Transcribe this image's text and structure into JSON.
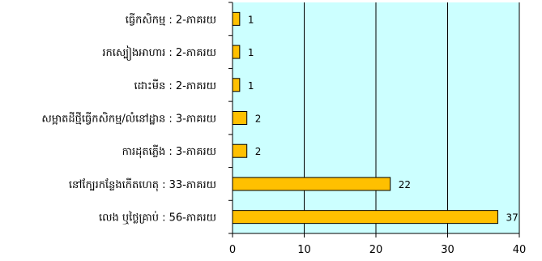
{
  "chart_data": {
    "type": "bar",
    "orientation": "horizontal",
    "categories": [
      "ធ្វើកសិកម្ម : 2-ភាគរយ",
      "រកស្បៀងអាហារ : 2-ភាគរយ",
      "ដោះមីន : 2-ភាគរយ",
      "សម្អាតដីថ្មីធ្វើកសិកម្ម/លំនៅដ្ឋាន : 3-ភាគរយ",
      "ការដុតភ្លើង : 3-ភាគរយ",
      "នៅក្បែរកន្លែងកើតហេតុ : 33-ភាគរយ",
      "លេង ឬថ្លៃគ្រាប់ : 56-ភាគរយ"
    ],
    "values": [
      1,
      1,
      1,
      2,
      2,
      22,
      37
    ],
    "value_labels": [
      "1",
      "1",
      "1",
      "2",
      "2",
      "22",
      "37"
    ],
    "xlim": [
      0,
      40
    ],
    "xticks": [
      "0",
      "10",
      "20",
      "30",
      "40"
    ],
    "x_tick_values": [
      0,
      10,
      20,
      30,
      40
    ],
    "grid": true,
    "colors": {
      "plot_background": "#ccffff",
      "bar_fill": "#ffc000",
      "bar_stroke": "#000000",
      "gridline": "#000000"
    }
  }
}
